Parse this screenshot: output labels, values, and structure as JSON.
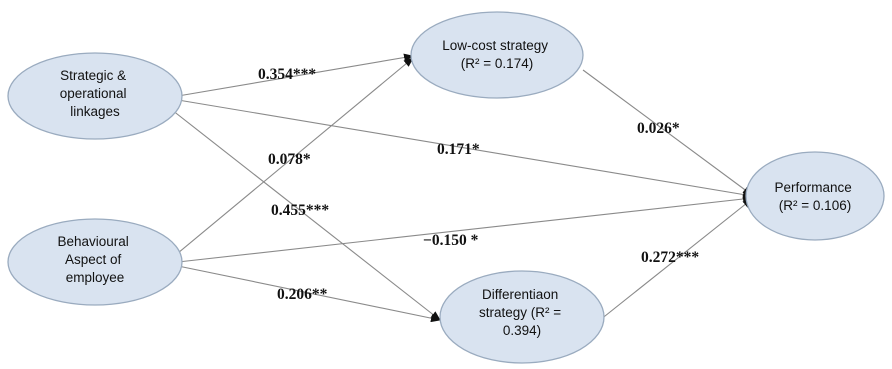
{
  "nodes": {
    "strategic": {
      "lines": [
        "Strategic &",
        "operational",
        "linkages"
      ]
    },
    "behavioural": {
      "lines": [
        "Behavioural",
        "Aspect of",
        "employee"
      ]
    },
    "lowcost": {
      "lines": [
        "Low-cost strategy",
        "(R² = 0.174)"
      ]
    },
    "differentiation": {
      "lines": [
        "Differentiaon",
        "strategy (R² =",
        "0.394)"
      ]
    },
    "performance": {
      "lines": [
        "Performance",
        "(R² = 0.106)"
      ]
    }
  },
  "edges": {
    "strategic_lowcost": "0.354***",
    "strategic_performance": "0.171*",
    "strategic_differentiation": "0.455***",
    "behavioural_lowcost": "0.078*",
    "behavioural_performance": "−0.150 *",
    "behavioural_differentiation": "0.206**",
    "lowcost_performance": "0.026*",
    "differentiation_performance": "0.272***"
  },
  "colors": {
    "node_fill": "#d9e3f0",
    "node_border": "#9aabbf",
    "arrow": "#8a8a8a"
  }
}
